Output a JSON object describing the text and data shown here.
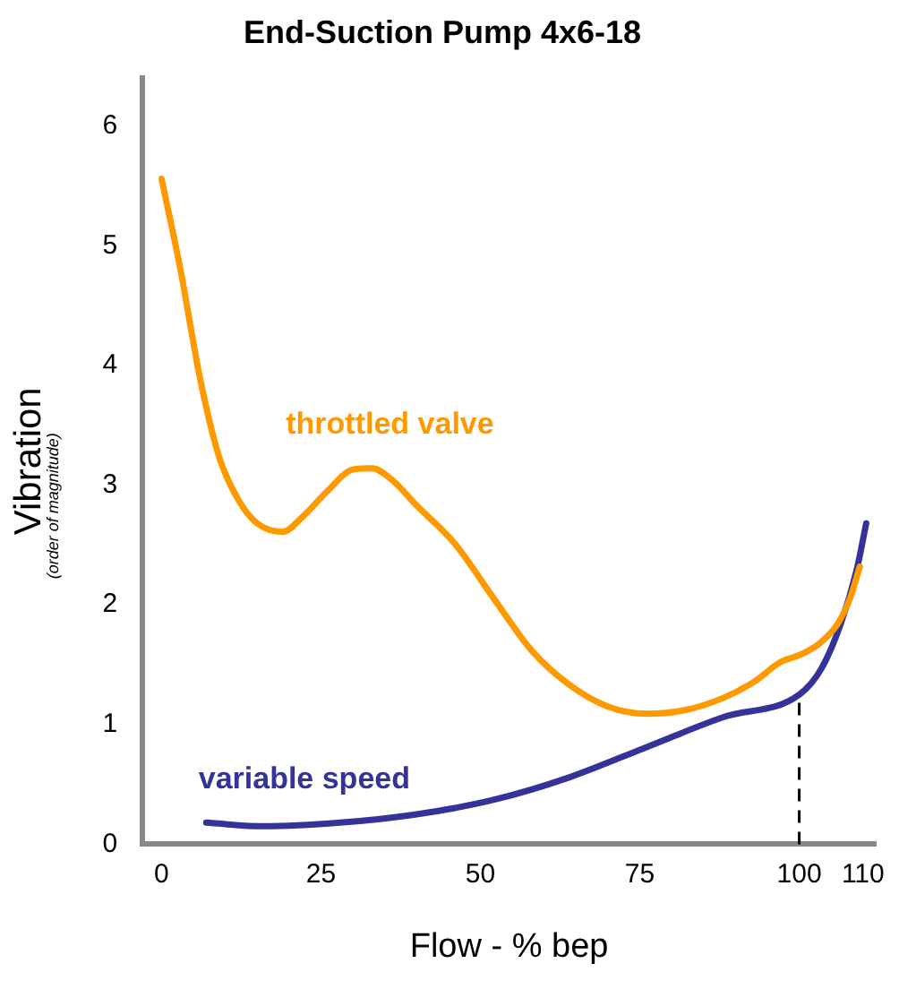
{
  "chart_data": {
    "type": "line",
    "title": "End-Suction Pump 4x6-18",
    "xlabel": "Flow - % bep",
    "ylabel": "Vibration",
    "annotations": [
      "(order of magnitude)"
    ],
    "xlim": [
      -3,
      112
    ],
    "xticks": [
      0,
      25,
      50,
      75,
      100,
      110
    ],
    "ylim": [
      0,
      6.4
    ],
    "yticks": [
      0,
      1,
      2,
      3,
      4,
      5,
      6
    ],
    "grid": false,
    "legend": false,
    "marker": "none",
    "line_style": "solid",
    "ref_lines": [
      {
        "axis": "x",
        "value": 100,
        "line_style": "dashed",
        "color": "#000000"
      }
    ],
    "series": [
      {
        "name": "throttled valve",
        "color": "#ff9900",
        "x": [
          0,
          3,
          6,
          9,
          12,
          15,
          19,
          22,
          26,
          30,
          33,
          36,
          40,
          46,
          52,
          58,
          64,
          70,
          76,
          82,
          88,
          93,
          97,
          100,
          103,
          106,
          108,
          109.5
        ],
        "values": [
          5.56,
          4.79,
          3.9,
          3.24,
          2.88,
          2.68,
          2.61,
          2.73,
          2.95,
          3.13,
          3.14,
          3.05,
          2.83,
          2.51,
          2.06,
          1.62,
          1.33,
          1.15,
          1.09,
          1.12,
          1.22,
          1.36,
          1.52,
          1.58,
          1.67,
          1.84,
          2.06,
          2.32
        ]
      },
      {
        "name": "variable speed",
        "color": "#333399",
        "x": [
          7,
          16,
          28,
          40,
          52,
          64,
          76,
          88,
          100,
          103.5,
          106.5,
          109,
          110.5
        ],
        "values": [
          0.18,
          0.15,
          0.18,
          0.25,
          0.37,
          0.56,
          0.81,
          1.06,
          1.25,
          1.47,
          1.84,
          2.29,
          2.68
        ]
      }
    ]
  }
}
